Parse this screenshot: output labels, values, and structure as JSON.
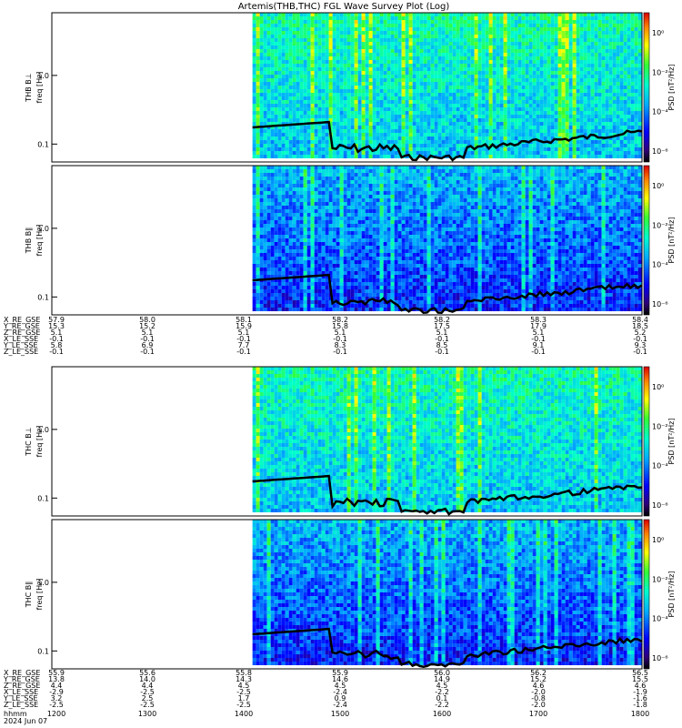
{
  "title": "Artemis(THB,THC) FGL Wave Survey Plot (Log)",
  "colors": {
    "trace": "#000000",
    "frame": "#000000",
    "fill_bg": "#ffffff"
  },
  "chart_data": [
    {
      "type": "heatmap",
      "panel_label": "THB B⊥",
      "ylabel": "freq [Hz]",
      "y_ticks": [
        "1.0",
        "0.1"
      ],
      "y_scale": "log",
      "colorbar_label": "PSD [nT²/Hz]",
      "colorbar_ticks": [
        "10⁰",
        "10⁻²",
        "10⁻⁴",
        "10⁻⁶"
      ],
      "data_start_fraction": 0.34,
      "intensity": "high"
    },
    {
      "type": "heatmap",
      "panel_label": "THB B∥",
      "ylabel": "freq [Hz]",
      "y_ticks": [
        "1.0",
        "0.1"
      ],
      "y_scale": "log",
      "colorbar_label": "PSD [nT²/Hz]",
      "colorbar_ticks": [
        "10⁰",
        "10⁻²",
        "10⁻⁴",
        "10⁻⁶"
      ],
      "data_start_fraction": 0.34,
      "intensity": "low"
    },
    {
      "type": "heatmap",
      "panel_label": "THC B⊥",
      "ylabel": "freq [Hz]",
      "y_ticks": [
        "1.0",
        "0.1"
      ],
      "y_scale": "log",
      "colorbar_label": "PSD [nT²/Hz]",
      "colorbar_ticks": [
        "10⁰",
        "10⁻²",
        "10⁻⁴",
        "10⁻⁶"
      ],
      "data_start_fraction": 0.34,
      "intensity": "high"
    },
    {
      "type": "heatmap",
      "panel_label": "THC B∥",
      "ylabel": "freq [Hz]",
      "y_ticks": [
        "1.0",
        "0.1"
      ],
      "y_scale": "log",
      "colorbar_label": "PSD [nT²/Hz]",
      "colorbar_ticks": [
        "10⁰",
        "10⁻²",
        "10⁻⁴",
        "10⁻⁶"
      ],
      "data_start_fraction": 0.34,
      "intensity": "low"
    }
  ],
  "ephemeris_blocks": [
    {
      "rows": [
        {
          "label": "X_RE_GSE",
          "values": [
            "57.9",
            "58.0",
            "58.1",
            "58.2",
            "58.2",
            "58.3",
            "58.4"
          ]
        },
        {
          "label": "Y_RE_GSE",
          "values": [
            "15.3",
            "15.2",
            "15.9",
            "15.8",
            "17.5",
            "17.9",
            "18.5"
          ]
        },
        {
          "label": "Z_RE_GSE",
          "values": [
            "5.1",
            "5.1",
            "5.1",
            "5.1",
            "5.1",
            "5.1",
            "5.2"
          ]
        },
        {
          "label": "X_LE_SSE",
          "values": [
            "-0.1",
            "-0.1",
            "-0.1",
            "-0.1",
            "-0.1",
            "-0.1",
            "-0.1"
          ]
        },
        {
          "label": "Y_LE_SSE",
          "values": [
            "5.8",
            "6.9",
            "7.7",
            "8.3",
            "8.5",
            "9.1",
            "9.3"
          ]
        },
        {
          "label": "Z_LE_SSE",
          "values": [
            "-0.1",
            "-0.1",
            "-0.1",
            "-0.1",
            "-0.1",
            "-0.1",
            "-0.1"
          ]
        }
      ]
    },
    {
      "rows": [
        {
          "label": "X_RE_GSE",
          "values": [
            "55.9",
            "55.6",
            "55.8",
            "55.9",
            "56.0",
            "56.2",
            "56.5"
          ]
        },
        {
          "label": "Y_RE_GSE",
          "values": [
            "13.8",
            "14.0",
            "14.3",
            "14.6",
            "14.9",
            "15.2",
            "15.5"
          ]
        },
        {
          "label": "Z_RE_GSE",
          "values": [
            "4.4",
            "4.4",
            "4.5",
            "4.5",
            "4.5",
            "4.6",
            "4.6"
          ]
        },
        {
          "label": "X_LE_SSE",
          "values": [
            "-2.9",
            "-2.5",
            "-2.5",
            "-2.4",
            "-2.2",
            "-2.0",
            "-1.9"
          ]
        },
        {
          "label": "Y_LE_SSE",
          "values": [
            "3.2",
            "2.5",
            "1.7",
            "0.9",
            "0.1",
            "-0.8",
            "-1.6"
          ]
        },
        {
          "label": "Z_LE_SSE",
          "values": [
            "-2.5",
            "-2.5",
            "-2.5",
            "-2.4",
            "-2.2",
            "-2.0",
            "-1.8"
          ]
        }
      ]
    }
  ],
  "time_axis": {
    "label": "hhmm",
    "ticks": [
      "1200",
      "1300",
      "1400",
      "1500",
      "1600",
      "1700",
      "1800"
    ],
    "date": "2024 Jun 07"
  }
}
